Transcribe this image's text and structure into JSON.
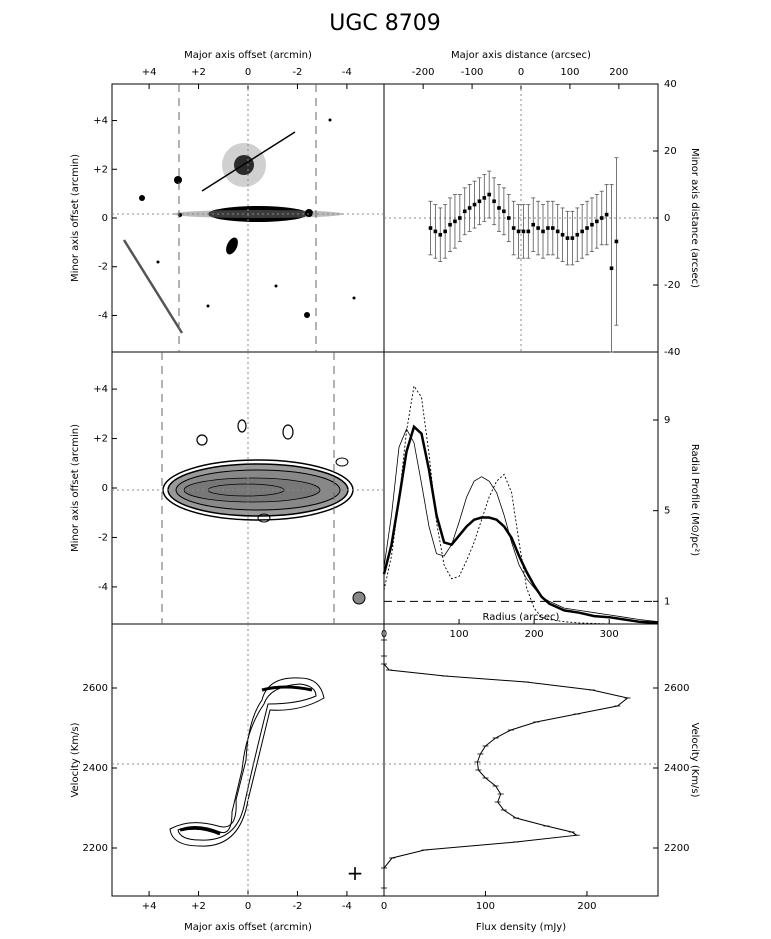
{
  "title": "UGC 8709",
  "chart_data": [
    {
      "panel": "optical-image",
      "type": "image",
      "top_xlabel": "Major axis offset (arcmin)",
      "ylabel": "Minor axis offset (arcmin)",
      "xticks": [
        "+4",
        "+2",
        "0",
        "-2",
        "-4"
      ],
      "yticks": [
        "+4",
        "+2",
        "0",
        "-2",
        "-4"
      ],
      "xlim": [
        5.5,
        -5.5
      ],
      "ylim": [
        -5.5,
        5.5
      ]
    },
    {
      "panel": "minor-axis-distance",
      "type": "scatter",
      "top_xlabel": "Major axis distance (arcsec)",
      "right_ylabel": "Minor axis distance (arcsec)",
      "xticks": [
        "-200",
        "-100",
        "0",
        "100",
        "200"
      ],
      "yticks": [
        "40",
        "20",
        "0",
        "-20",
        "-40"
      ],
      "xlim": [
        -280,
        280
      ],
      "ylim": [
        -40,
        40
      ],
      "points": [
        {
          "x": -185,
          "y": -3,
          "err": 8
        },
        {
          "x": -175,
          "y": -4,
          "err": 8
        },
        {
          "x": -165,
          "y": -5,
          "err": 8
        },
        {
          "x": -155,
          "y": -4,
          "err": 8
        },
        {
          "x": -145,
          "y": -2,
          "err": 8
        },
        {
          "x": -135,
          "y": -1,
          "err": 8
        },
        {
          "x": -125,
          "y": 0,
          "err": 7
        },
        {
          "x": -115,
          "y": 2,
          "err": 7
        },
        {
          "x": -105,
          "y": 3,
          "err": 7
        },
        {
          "x": -95,
          "y": 4,
          "err": 7
        },
        {
          "x": -85,
          "y": 5,
          "err": 7
        },
        {
          "x": -75,
          "y": 6,
          "err": 7
        },
        {
          "x": -65,
          "y": 7,
          "err": 7
        },
        {
          "x": -55,
          "y": 5,
          "err": 7
        },
        {
          "x": -45,
          "y": 3,
          "err": 7
        },
        {
          "x": -35,
          "y": 2,
          "err": 7
        },
        {
          "x": -25,
          "y": 0,
          "err": 7
        },
        {
          "x": -15,
          "y": -3,
          "err": 8
        },
        {
          "x": -5,
          "y": -4,
          "err": 8
        },
        {
          "x": 5,
          "y": -4,
          "err": 8
        },
        {
          "x": 15,
          "y": -4,
          "err": 8
        },
        {
          "x": 25,
          "y": -2,
          "err": 8
        },
        {
          "x": 35,
          "y": -3,
          "err": 8
        },
        {
          "x": 45,
          "y": -4,
          "err": 8
        },
        {
          "x": 55,
          "y": -3,
          "err": 8
        },
        {
          "x": 65,
          "y": -3,
          "err": 8
        },
        {
          "x": 75,
          "y": -4,
          "err": 8
        },
        {
          "x": 85,
          "y": -5,
          "err": 8
        },
        {
          "x": 95,
          "y": -6,
          "err": 8
        },
        {
          "x": 105,
          "y": -6,
          "err": 8
        },
        {
          "x": 115,
          "y": -5,
          "err": 8
        },
        {
          "x": 125,
          "y": -4,
          "err": 8
        },
        {
          "x": 135,
          "y": -3,
          "err": 8
        },
        {
          "x": 145,
          "y": -2,
          "err": 8
        },
        {
          "x": 155,
          "y": -1,
          "err": 8
        },
        {
          "x": 165,
          "y": 0,
          "err": 8
        },
        {
          "x": 175,
          "y": 1,
          "err": 9
        },
        {
          "x": 185,
          "y": -15,
          "err": 25
        },
        {
          "x": 195,
          "y": -7,
          "err": 25
        }
      ]
    },
    {
      "panel": "hi-total-map",
      "type": "contour",
      "ylabel": "Minor axis offset (arcmin)",
      "yticks": [
        "+4",
        "+2",
        "0",
        "-2",
        "-4"
      ],
      "xlim": [
        5.5,
        -5.5
      ],
      "ylim": [
        -5.5,
        5.5
      ]
    },
    {
      "panel": "radial-profile",
      "type": "line",
      "xlabel": "Radius (arcsec)",
      "right_ylabel": "Radial Profile (M⊙/pc²)",
      "xticks": [
        "0",
        "100",
        "200",
        "300"
      ],
      "yticks": [
        "1",
        "5",
        "9"
      ],
      "xlim": [
        0,
        365
      ],
      "ylim": [
        0,
        12
      ],
      "series": [
        {
          "style": "thick",
          "x": [
            0,
            10,
            20,
            30,
            40,
            50,
            60,
            70,
            80,
            90,
            100,
            110,
            120,
            130,
            140,
            150,
            160,
            170,
            180,
            190,
            200,
            210,
            220,
            240,
            260,
            280,
            300,
            320,
            340,
            365
          ],
          "y": [
            2.2,
            3.5,
            5.5,
            7.6,
            8.7,
            8.4,
            6.8,
            4.8,
            3.6,
            3.5,
            3.9,
            4.3,
            4.6,
            4.7,
            4.7,
            4.6,
            4.3,
            3.8,
            3.0,
            2.3,
            1.7,
            1.2,
            0.9,
            0.6,
            0.5,
            0.35,
            0.3,
            0.2,
            0.1,
            0.05
          ]
        },
        {
          "style": "thin",
          "x": [
            0,
            10,
            20,
            30,
            40,
            50,
            60,
            70,
            80,
            90,
            100,
            110,
            120,
            130,
            140,
            150,
            160,
            170,
            180,
            190,
            200,
            210,
            220,
            240,
            260,
            280,
            300,
            320,
            340,
            365
          ],
          "y": [
            2.5,
            4.8,
            7.8,
            8.6,
            8.0,
            6.2,
            4.3,
            3.1,
            3.0,
            3.5,
            4.5,
            5.6,
            6.3,
            6.5,
            6.3,
            5.8,
            4.8,
            3.6,
            2.6,
            2.0,
            1.6,
            1.2,
            1.0,
            0.7,
            0.6,
            0.5,
            0.4,
            0.3,
            0.2,
            0.1
          ]
        },
        {
          "style": "dotted",
          "x": [
            0,
            10,
            20,
            30,
            40,
            50,
            60,
            70,
            80,
            90,
            100,
            110,
            120,
            130,
            140,
            150,
            160,
            170,
            180,
            190,
            200,
            210,
            220,
            240,
            260,
            300,
            365
          ],
          "y": [
            1.5,
            3.0,
            5.5,
            8.5,
            10.5,
            10.0,
            7.5,
            4.5,
            2.6,
            2.0,
            2.1,
            2.8,
            3.6,
            4.6,
            5.6,
            6.3,
            6.6,
            5.8,
            3.6,
            1.6,
            0.7,
            0.3,
            0.2,
            0.1,
            0.05,
            0.0,
            0.0
          ]
        }
      ],
      "reference_line_y": 1
    },
    {
      "panel": "position-velocity",
      "type": "contour",
      "xlabel": "Major axis offset (arcmin)",
      "ylabel": "Velocity (Km/s)",
      "xticks": [
        "+4",
        "+2",
        "0",
        "-2",
        "-4"
      ],
      "yticks": [
        "2600",
        "2400",
        "2200"
      ],
      "xlim": [
        5.5,
        -5.5
      ],
      "ylim": [
        2080,
        2760
      ]
    },
    {
      "panel": "global-profile",
      "type": "line",
      "xlabel": "Flux density (mJy)",
      "right_ylabel": "Velocity (Km/s)",
      "xticks": [
        "0",
        "100",
        "200"
      ],
      "yticks": [
        "2600",
        "2400",
        "2200"
      ],
      "xlim": [
        0,
        270
      ],
      "ylim": [
        2080,
        2760
      ],
      "flux": [
        0,
        0,
        0,
        5,
        60,
        140,
        205,
        240,
        230,
        190,
        150,
        125,
        110,
        100,
        95,
        92,
        93,
        100,
        110,
        115,
        112,
        118,
        130,
        160,
        185,
        190,
        130,
        40,
        8,
        0,
        0
      ],
      "velocity": [
        2720,
        2680,
        2660,
        2645,
        2630,
        2615,
        2595,
        2575,
        2555,
        2535,
        2515,
        2495,
        2475,
        2455,
        2435,
        2415,
        2395,
        2375,
        2355,
        2335,
        2315,
        2295,
        2275,
        2255,
        2240,
        2232,
        2215,
        2195,
        2175,
        2150,
        2100
      ]
    }
  ]
}
